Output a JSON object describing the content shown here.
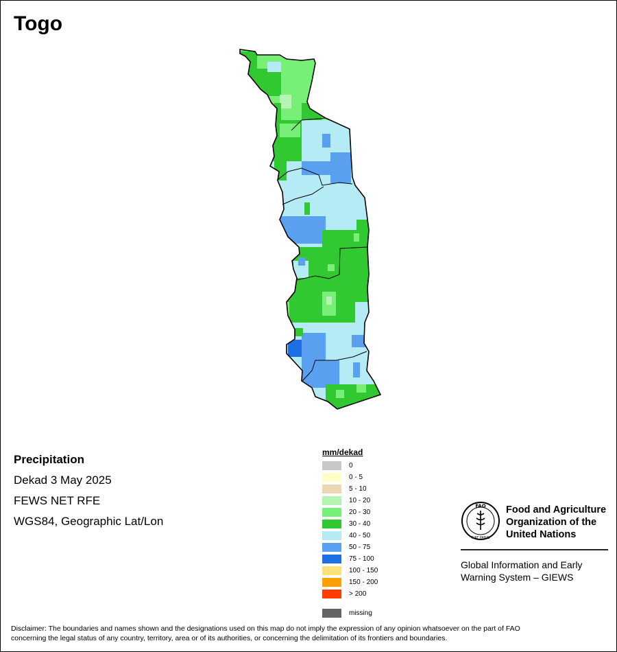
{
  "title": "Togo",
  "info": {
    "heading": "Precipitation",
    "period": "Dekad 3 May 2025",
    "source": "FEWS NET RFE",
    "projection": "WGS84, Geographic Lat/Lon"
  },
  "legend": {
    "title": "mm/dekad",
    "classes": [
      {
        "label": "0",
        "color": "#c8c8c8"
      },
      {
        "label": "0 - 5",
        "color": "#ffffc8"
      },
      {
        "label": "5 - 10",
        "color": "#ebd7b4"
      },
      {
        "label": "10 - 20",
        "color": "#b4f5b4"
      },
      {
        "label": "20 - 30",
        "color": "#78f078"
      },
      {
        "label": "30 - 40",
        "color": "#32c832"
      },
      {
        "label": "40 - 50",
        "color": "#b4ebf5"
      },
      {
        "label": "50 - 75",
        "color": "#5aa0f0"
      },
      {
        "label": "75 - 100",
        "color": "#1e6ee6"
      },
      {
        "label": "100 - 150",
        "color": "#ffe178"
      },
      {
        "label": "150 - 200",
        "color": "#ffa000"
      },
      {
        "label": "> 200",
        "color": "#ff3c00"
      }
    ],
    "missing": {
      "label": "missing",
      "color": "#646464"
    }
  },
  "fao": {
    "org_line1": "Food and Agriculture",
    "org_line2": "Organization of the",
    "org_line3": "United Nations",
    "logo_letters": "FAO",
    "logo_motto": "FIAT PANIS",
    "giews_line1": "Global Information and Early",
    "giews_line2": "Warning System – GIEWS"
  },
  "disclaimer_line1": "Disclaimer: The boundaries and names shown and the designations used on this map do not imply the expression of any opinion whatsoever on the part of FAO",
  "disclaimer_line2": "concerning the legal status of any country, territory, area or of its authorities, or concerning the delimitation of its frontiers and boundaries."
}
